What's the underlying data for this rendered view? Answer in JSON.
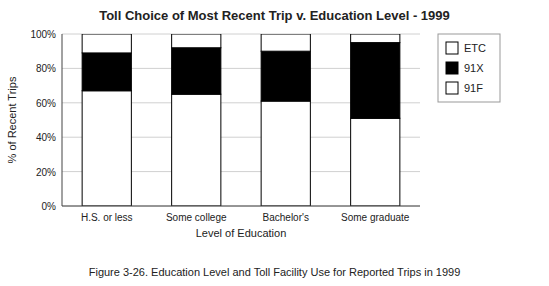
{
  "chart_data": {
    "type": "bar",
    "stacked": true,
    "title": "Toll Choice of Most Recent Trip v. Education Level - 1999",
    "xlabel": "Level of Education",
    "ylabel": "% of Recent Trips",
    "caption": "Figure 3-26. Education Level and Toll Facility Use for Reported Trips in 1999",
    "categories": [
      "H.S. or less",
      "Some college",
      "Bachelor's",
      "Some graduate"
    ],
    "series": [
      {
        "name": "91F",
        "color": "#ffffff",
        "values": [
          67,
          65,
          61,
          51
        ]
      },
      {
        "name": "91X",
        "color": "#000000",
        "values": [
          22,
          27,
          29,
          44
        ]
      },
      {
        "name": "ETC",
        "color": "#ffffff",
        "values": [
          11,
          8,
          10,
          5
        ]
      }
    ],
    "ylim": [
      0,
      100
    ],
    "yticks": [
      {
        "value": 0,
        "label": "0%"
      },
      {
        "value": 20,
        "label": "20%"
      },
      {
        "value": 40,
        "label": "40%"
      },
      {
        "value": 60,
        "label": "60%"
      },
      {
        "value": 80,
        "label": "80%"
      },
      {
        "value": 100,
        "label": "100%"
      }
    ],
    "grid": true,
    "legend": "right"
  }
}
